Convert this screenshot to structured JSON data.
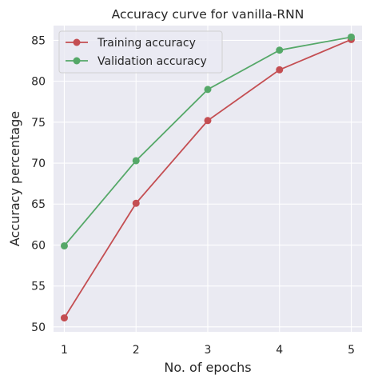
{
  "chart_data": {
    "type": "line",
    "title": "Accuracy curve for vanilla-RNN",
    "xlabel": "No. of epochs",
    "ylabel": "Accuracy percentage",
    "x": [
      1,
      2,
      3,
      4,
      5
    ],
    "xticks": [
      1,
      2,
      3,
      4,
      5
    ],
    "yticks": [
      50,
      55,
      60,
      65,
      70,
      75,
      80,
      85
    ],
    "xlim": [
      0.85,
      5.15
    ],
    "ylim": [
      49.4,
      86.8
    ],
    "grid": true,
    "legend_position": "upper-left",
    "series": [
      {
        "name": "Training accuracy",
        "color": "#c44e52",
        "values": [
          51.1,
          65.1,
          75.2,
          81.4,
          85.1
        ]
      },
      {
        "name": "Validation accuracy",
        "color": "#55a868",
        "values": [
          59.9,
          70.3,
          79.0,
          83.8,
          85.4
        ]
      }
    ]
  }
}
